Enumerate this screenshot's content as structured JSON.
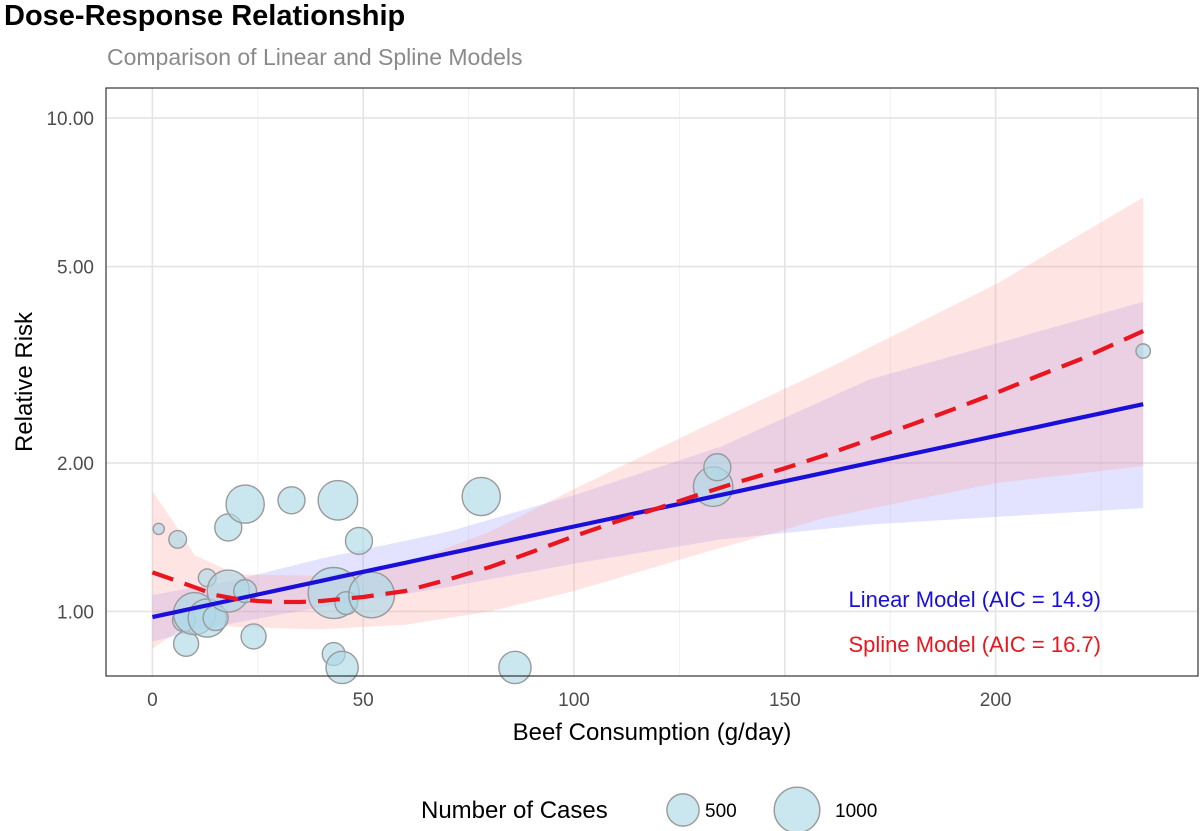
{
  "chart_data": {
    "type": "scatter",
    "title": "Dose-Response Relationship",
    "subtitle": "Comparison of Linear and Spline Models",
    "xlabel": "Beef Consumption (g/day)",
    "ylabel": "Relative Risk",
    "x_scale": "linear",
    "y_scale": "log",
    "xlim": [
      -11,
      248
    ],
    "ylim": [
      0.74,
      11.5
    ],
    "x_ticks": [
      0,
      50,
      100,
      150,
      200
    ],
    "x_tick_labels": [
      "0",
      "50",
      "100",
      "150",
      "200"
    ],
    "y_ticks": [
      1,
      2,
      5,
      10
    ],
    "y_tick_labels": [
      "1.00",
      "2.00",
      "5.00",
      "10.00"
    ],
    "grid": true,
    "points": [
      {
        "x": 1.5,
        "y": 1.47,
        "cases": 60
      },
      {
        "x": 6,
        "y": 1.4,
        "cases": 150
      },
      {
        "x": 7.5,
        "y": 0.96,
        "cases": 250
      },
      {
        "x": 8,
        "y": 0.86,
        "cases": 300
      },
      {
        "x": 10,
        "y": 0.99,
        "cases": 850
      },
      {
        "x": 13,
        "y": 1.17,
        "cases": 150
      },
      {
        "x": 13,
        "y": 0.97,
        "cases": 700
      },
      {
        "x": 15,
        "y": 0.97,
        "cases": 300
      },
      {
        "x": 18,
        "y": 1.48,
        "cases": 350
      },
      {
        "x": 18,
        "y": 1.1,
        "cases": 850
      },
      {
        "x": 22,
        "y": 1.65,
        "cases": 700
      },
      {
        "x": 22,
        "y": 1.1,
        "cases": 250
      },
      {
        "x": 24,
        "y": 0.89,
        "cases": 300
      },
      {
        "x": 33,
        "y": 1.68,
        "cases": 350
      },
      {
        "x": 43,
        "y": 0.82,
        "cases": 250
      },
      {
        "x": 43,
        "y": 1.09,
        "cases": 1250
      },
      {
        "x": 44,
        "y": 1.68,
        "cases": 750
      },
      {
        "x": 45,
        "y": 0.77,
        "cases": 500
      },
      {
        "x": 46,
        "y": 1.04,
        "cases": 250
      },
      {
        "x": 49,
        "y": 1.39,
        "cases": 350
      },
      {
        "x": 52,
        "y": 1.08,
        "cases": 1000
      },
      {
        "x": 78,
        "y": 1.71,
        "cases": 700
      },
      {
        "x": 86,
        "y": 0.77,
        "cases": 500
      },
      {
        "x": 133,
        "y": 1.79,
        "cases": 750
      },
      {
        "x": 134,
        "y": 1.96,
        "cases": 350
      },
      {
        "x": 235,
        "y": 3.37,
        "cases": 100
      }
    ],
    "series": [
      {
        "name": "Linear Model (AIC = 14.9)",
        "color": "#1a0fd8",
        "style": "solid",
        "x": [
          0,
          235
        ],
        "y": [
          0.974,
          2.63
        ],
        "ci_lower": [
          0.87,
          0.95,
          1.02,
          1.12,
          1.25,
          1.4,
          1.5,
          1.62
        ],
        "ci_upper": [
          1.08,
          1.16,
          1.28,
          1.45,
          1.72,
          2.16,
          2.95,
          4.24
        ],
        "ci_x": [
          0,
          20,
          40,
          70,
          100,
          135,
          170,
          235
        ]
      },
      {
        "name": "Spline Model (AIC = 16.7)",
        "color": "#e8161e",
        "style": "dashed",
        "x": [
          0,
          5,
          10,
          15,
          20,
          25,
          30,
          35,
          40,
          50,
          60,
          70,
          80,
          90,
          100,
          110,
          120,
          130,
          140,
          150,
          160,
          170,
          180,
          190,
          200,
          210,
          220,
          235
        ],
        "y": [
          1.2,
          1.16,
          1.12,
          1.08,
          1.06,
          1.05,
          1.045,
          1.045,
          1.05,
          1.07,
          1.1,
          1.16,
          1.23,
          1.32,
          1.42,
          1.52,
          1.62,
          1.73,
          1.84,
          1.95,
          2.08,
          2.23,
          2.39,
          2.57,
          2.77,
          3.0,
          3.24,
          3.7
        ],
        "ci_x": [
          0,
          5,
          10,
          20,
          40,
          60,
          80,
          100,
          130,
          160,
          200,
          235
        ],
        "ci_lower": [
          0.84,
          0.9,
          0.95,
          0.93,
          0.92,
          0.94,
          1.0,
          1.1,
          1.31,
          1.55,
          1.82,
          1.97
        ],
        "ci_upper": [
          1.75,
          1.52,
          1.3,
          1.19,
          1.18,
          1.25,
          1.45,
          1.77,
          2.35,
          3.1,
          4.6,
          6.9
        ]
      }
    ],
    "annotations": [
      "Linear Model (AIC = 14.9)",
      "Spline Model (AIC = 16.7)"
    ],
    "legend": {
      "title": "Number of Cases",
      "position": "bottom",
      "entries": [
        {
          "label": "500",
          "cases": 500
        },
        {
          "label": "1000",
          "cases": 1000
        }
      ]
    },
    "colors": {
      "point_fill": "#add8e6",
      "point_stroke": "#9a9a9a",
      "linear_band": "#9b9bff",
      "spline_band": "#ff9e9e",
      "panel_border": "#333333",
      "grid": "#e4e4e4"
    }
  }
}
